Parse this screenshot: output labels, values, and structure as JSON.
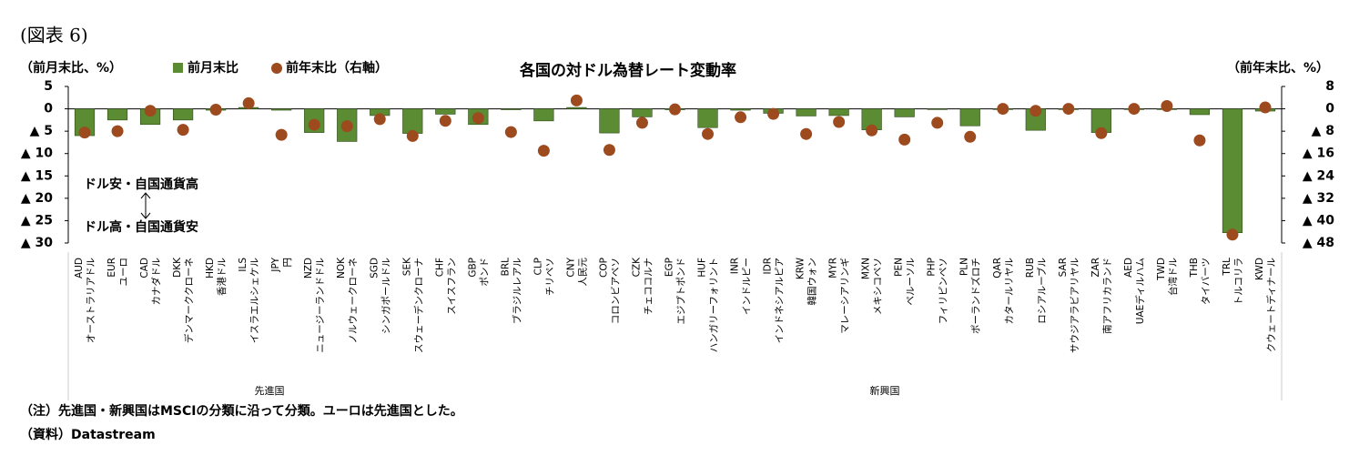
{
  "chart_data": {
    "type": "bar+scatter",
    "figure_label": "(図表 6)",
    "title": "各国の対ドル為替レート変動率",
    "y_label": "（前月末比、%）",
    "y2_label": "（前年末比、%）",
    "categories": [
      "AUD",
      "EUR",
      "CAD",
      "DKK",
      "HKD",
      "ILS",
      "JPY",
      "NZD",
      "NOK",
      "SGD",
      "SEK",
      "CHF",
      "GBP",
      "BRL",
      "CLP",
      "CNY",
      "COP",
      "CZK",
      "EGP",
      "HUF",
      "INR",
      "IDR",
      "KRW",
      "MYR",
      "MXN",
      "PEN",
      "PHP",
      "PLN",
      "QAR",
      "RUB",
      "SAR",
      "ZAR",
      "AED",
      "TWD",
      "THB",
      "TRL",
      "KWD"
    ],
    "category_names": [
      "オーストラリアドル",
      "ユーロ",
      "カナダドル",
      "デンマーククローネ",
      "香港ドル",
      "イスラエルシェケル",
      "円",
      "ニュージーランドドル",
      "ノルウェークローネ",
      "シンガポールドル",
      "スウェーデンクローナ",
      "スイスフラン",
      "ポンド",
      "ブラジルレアル",
      "チリペソ",
      "人民元",
      "コロンビアペソ",
      "チェココルナ",
      "エジプトポンド",
      "ハンガリーフォリント",
      "インドルピー",
      "インドネシアルピア",
      "韓国ウォン",
      "マレーシアリンギ",
      "メキシコペソ",
      "ペルーソル",
      "フィリピンペソ",
      "ポーランドズロチ",
      "カタールリヤル",
      "ロシアルーブル",
      "サウジアラビアリヤル",
      "南アフリカランド",
      "UAEディルハム",
      "台湾ドル",
      "タイバーツ",
      "トルコリラ",
      "クウェートディナール"
    ],
    "groups": [
      "先進国",
      "新興国"
    ],
    "series": [
      {
        "name": "前月末比",
        "color": "#5b8c33",
        "values": [
          -6,
          -2.5,
          -3.5,
          -2.5,
          -0.3,
          0.3,
          -0.3,
          -5.3,
          -7.3,
          -1.5,
          -5.5,
          -1.2,
          -3.5,
          -0.2,
          -2.7,
          0.3,
          -5.4,
          -1.8,
          -0.2,
          -4.2,
          -0.3,
          -1,
          -1.6,
          -1.5,
          -4.7,
          -1.8,
          0,
          -3.8,
          0,
          -4.8,
          0,
          -5.3,
          0,
          0,
          -1.3,
          -27.7,
          -0.5
        ]
      },
      {
        "name": "前年末比（右軸）",
        "color": "#9c4a1e",
        "axis": "y2",
        "values": [
          -8.5,
          -8,
          -0.7,
          -7.5,
          -0.3,
          2,
          -9.3,
          -5.7,
          -6.2,
          -3.7,
          -9.7,
          -4.3,
          -3.3,
          -8.3,
          -15,
          3,
          -14.7,
          -5,
          -0.2,
          -9,
          -3,
          -1.8,
          -9,
          -4.7,
          -7.7,
          -11,
          -5,
          -10,
          0,
          -0.7,
          0,
          -8.7,
          0,
          1,
          -11.3,
          -45,
          0.5
        ]
      }
    ],
    "ylim": [
      -30,
      5
    ],
    "yticks": [
      5,
      0,
      {
        "value": -5,
        "label": "▲ 5"
      },
      {
        "value": -10,
        "label": "▲ 10"
      },
      {
        "value": -15,
        "label": "▲ 15"
      },
      {
        "value": -20,
        "label": "▲ 20"
      },
      {
        "value": -25,
        "label": "▲ 25"
      },
      {
        "value": -30,
        "label": "▲ 30"
      }
    ],
    "y2lim": [
      -48,
      8
    ],
    "y2ticks": [
      8,
      0,
      {
        "value": -8,
        "label": "▲ 8"
      },
      {
        "value": -16,
        "label": "▲ 16"
      },
      {
        "value": -24,
        "label": "▲ 24"
      },
      {
        "value": -32,
        "label": "▲ 32"
      },
      {
        "value": -40,
        "label": "▲ 40"
      },
      {
        "value": -48,
        "label": "▲ 48"
      }
    ],
    "annotations": [
      "ドル安・自国通貨高",
      "ドル高・自国通貨安"
    ],
    "note": "（注）先進国・新興国はMSCIの分類に沿って分類。ユーロは先進国とした。",
    "source": "（資料）Datastream"
  }
}
